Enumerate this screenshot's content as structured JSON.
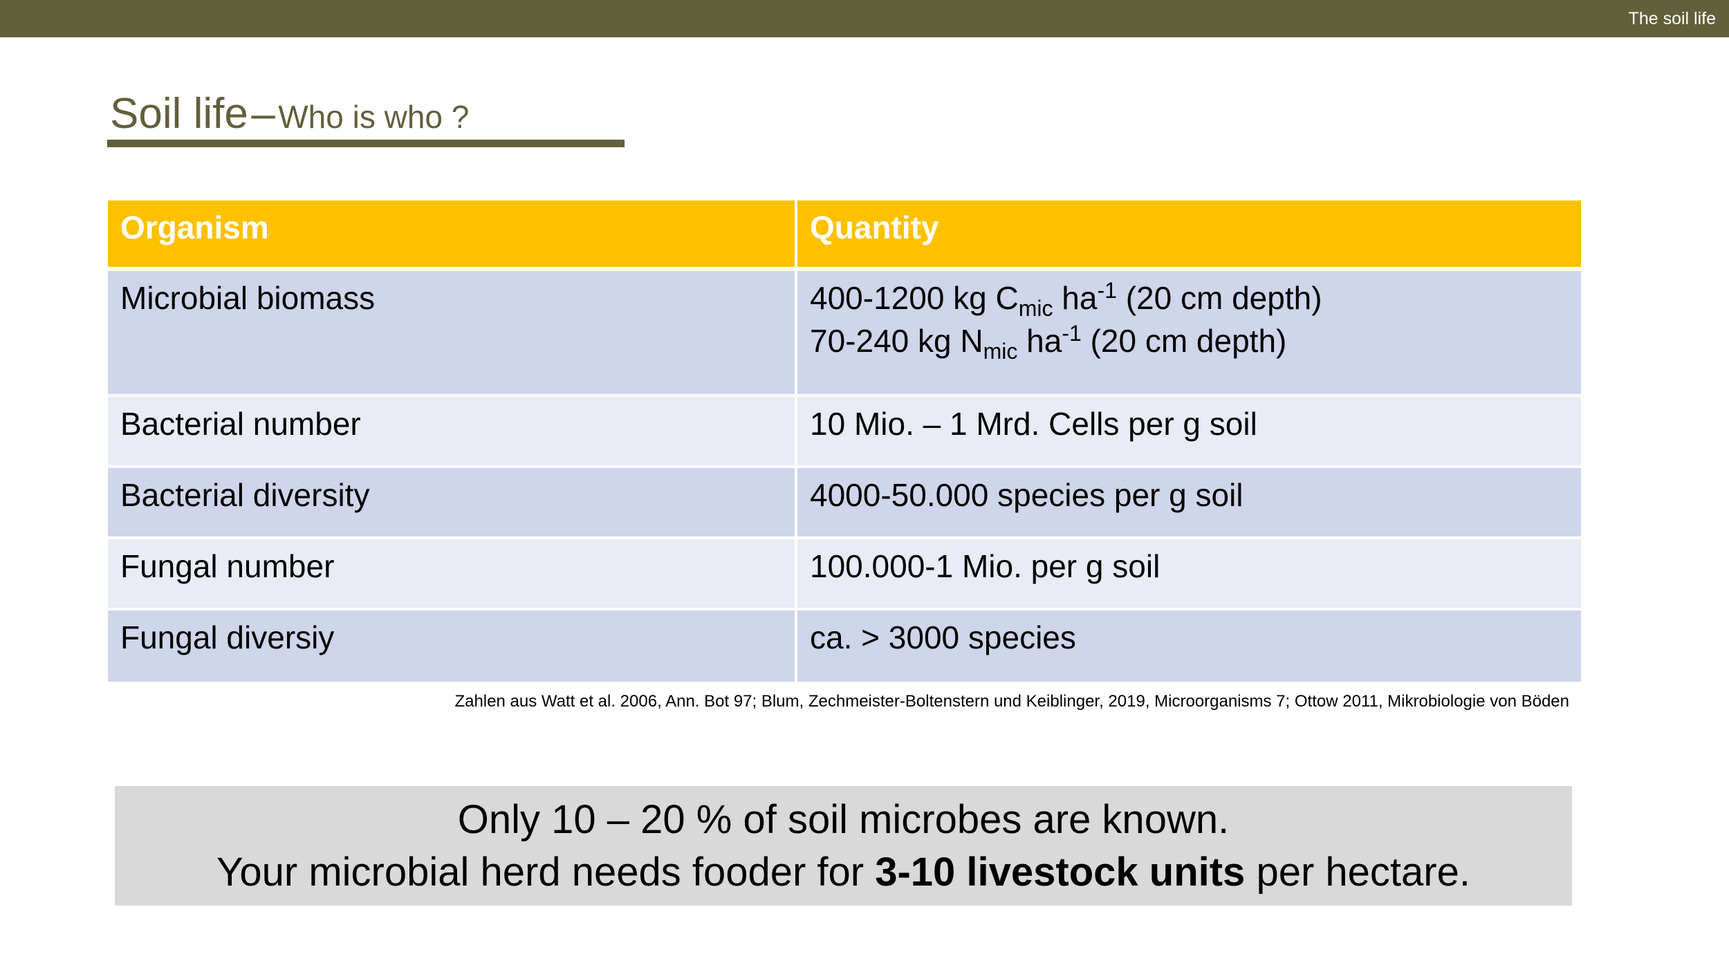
{
  "header": {
    "section_label": "The soil life"
  },
  "title": {
    "main": "Soil life",
    "separator": "–",
    "sub": "Who is who ?"
  },
  "table": {
    "headers": [
      "Organism",
      "Quantity"
    ],
    "rows": [
      {
        "organism": "Microbial biomass",
        "line1": {
          "pre": "400-1200 kg C",
          "sub": "mic",
          "mid": " ha",
          "sup": "-1",
          "post": " (20 cm depth)"
        },
        "line2": {
          "pre": "70-240 kg N",
          "sub": "mic",
          "mid": " ha",
          "sup": "-1",
          "post": " (20 cm depth)"
        }
      },
      {
        "organism": "Bacterial number",
        "quantity": "10 Mio. – 1 Mrd. Cells per g soil"
      },
      {
        "organism": "Bacterial diversity",
        "quantity": "4000-50.000 species per g soil"
      },
      {
        "organism": "Fungal number",
        "quantity": "100.000-1 Mio. per g soil"
      },
      {
        "organism": "Fungal diversiy",
        "quantity": "ca. > 3000 species"
      }
    ]
  },
  "source_note": "Zahlen aus Watt et al. 2006, Ann. Bot 97; Blum, Zechmeister-Boltenstern und Keiblinger, 2019, Microorganisms 7; Ottow 2011, Mikrobiologie von Böden",
  "callout": {
    "line1": "Only 10 – 20 % of soil microbes are known.",
    "line2_pre": "Your microbial herd needs fooder for ",
    "line2_bold": "3-10 livestock units",
    "line2_post": " per hectare."
  },
  "colors": {
    "header_bar": "#625f3c",
    "table_header": "#fdc100",
    "row_dark": "#cfd5ea",
    "row_light": "#e9ebf5",
    "callout_bg": "#d9d9d9"
  }
}
